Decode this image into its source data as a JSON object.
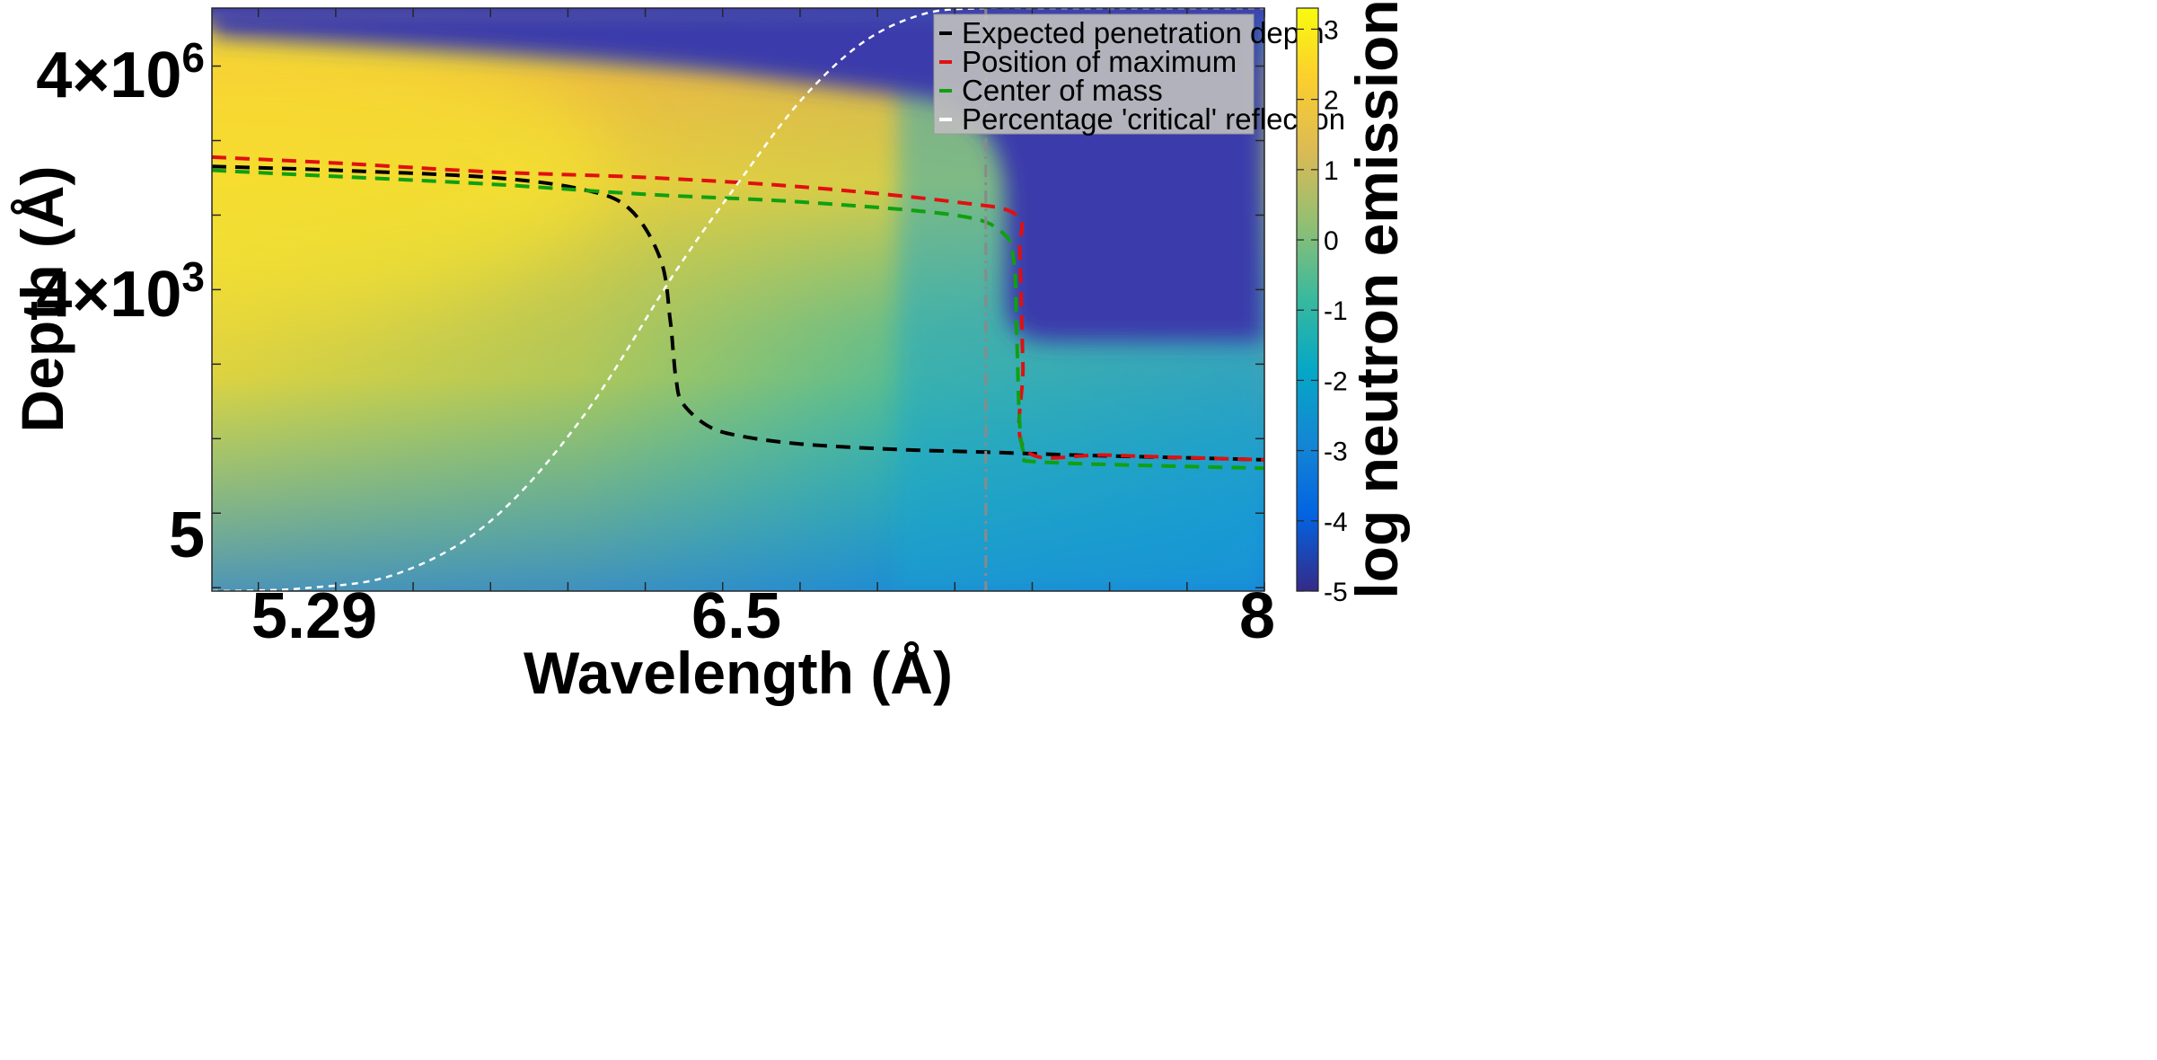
{
  "chart_data": {
    "type": "heatmap",
    "xlabel": "Wavelength (Å)",
    "ylabel": "Depth (Å)",
    "xlim": [
      4.6,
      8.0
    ],
    "x_ticks": [
      {
        "value": 5.29,
        "label": "5.29"
      },
      {
        "value": 6.5,
        "label": "6.5"
      },
      {
        "value": 8,
        "label": "8"
      }
    ],
    "y_scale": "log",
    "ylim": [
      0.9,
      60000000
    ],
    "y_ticks": [
      {
        "value": 5,
        "base": "5",
        "exp": ""
      },
      {
        "value": 4000,
        "base": "4×10",
        "exp": "3"
      },
      {
        "value": 4000000,
        "base": "4×10",
        "exp": "6"
      }
    ],
    "colorbar": {
      "label": "log neutron emission",
      "range": [
        -5,
        3.3
      ],
      "ticks": [
        "-5",
        "-4",
        "-3",
        "-2",
        "-1",
        "0",
        "1",
        "2",
        "3"
      ],
      "colormap": "parula"
    },
    "critical_wavelength_marker": 7.1,
    "legend": {
      "position": "top-right",
      "entries": [
        {
          "label": "Expected penetration depth",
          "color": "#000000"
        },
        {
          "label": "Position of maximum",
          "color": "#e01010"
        },
        {
          "label": "Center of mass",
          "color": "#10a010"
        },
        {
          "label": "Percentage 'critical' reflection",
          "color": "#ffffff"
        }
      ]
    },
    "series": [
      {
        "name": "Expected penetration depth",
        "color": "#000000",
        "x": [
          4.6,
          5.0,
          5.5,
          5.8,
          5.95,
          6.05,
          6.08,
          6.09,
          6.1,
          6.12,
          6.2,
          6.3,
          6.5,
          6.8,
          7.1,
          7.4,
          7.7,
          8.0
        ],
        "y": [
          450000,
          400000,
          320000,
          220000,
          120000,
          25000,
          4000,
          1500,
          600,
          300,
          150,
          110,
          85,
          72,
          66,
          60,
          56,
          52
        ]
      },
      {
        "name": "Position of maximum",
        "color": "#e01010",
        "x": [
          4.6,
          5.0,
          5.5,
          6.0,
          6.5,
          7.0,
          7.2,
          7.21,
          7.22,
          7.23,
          7.5,
          8.0
        ],
        "y": [
          600000,
          500000,
          380000,
          320000,
          240000,
          150000,
          100000,
          30000,
          1000,
          70,
          60,
          52
        ]
      },
      {
        "name": "Center of mass",
        "color": "#10a010",
        "x": [
          4.6,
          5.0,
          5.5,
          6.0,
          6.5,
          7.0,
          7.15,
          7.19,
          7.2,
          7.21,
          7.23,
          7.3,
          8.0
        ],
        "y": [
          400000,
          330000,
          260000,
          190000,
          150000,
          100000,
          60000,
          25000,
          2500,
          150,
          60,
          48,
          40
        ]
      },
      {
        "name": "Percentage 'critical' reflection",
        "color": "#ffffff",
        "x": [
          4.6,
          4.9,
          5.2,
          5.5,
          5.8,
          6.1,
          6.3,
          6.5,
          6.7,
          6.9,
          7.1,
          7.3,
          8.0
        ],
        "percent": [
          0,
          0.5,
          3,
          12,
          30,
          55,
          70,
          84,
          94,
          99,
          100,
          100,
          100
        ]
      }
    ]
  }
}
